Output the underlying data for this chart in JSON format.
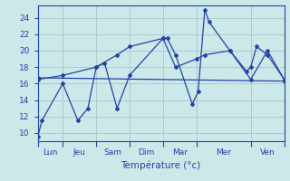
{
  "xlabel": "Température (°c)",
  "background_color": "#cce8e8",
  "grid_color": "#aacccc",
  "line_color": "#2244aa",
  "ylim": [
    9,
    25.5
  ],
  "yticks": [
    10,
    12,
    14,
    16,
    18,
    20,
    22,
    24
  ],
  "day_labels": [
    "Lun",
    "Jeu",
    "Sam",
    "Dim",
    "Mar",
    "Mer",
    "Ven"
  ],
  "day_tick_positions": [
    0,
    30,
    70,
    110,
    150,
    190,
    255,
    295
  ],
  "day_label_centers": [
    15,
    50,
    90,
    130,
    170,
    222,
    275
  ],
  "xlim": [
    0,
    295
  ],
  "series": [
    {
      "x": [
        0,
        5,
        30,
        48,
        60,
        70,
        80,
        95,
        110,
        150,
        155,
        165,
        185,
        192,
        200,
        205,
        230,
        250,
        255,
        262,
        275,
        295
      ],
      "y": [
        9.5,
        11.5,
        16.0,
        11.5,
        13.0,
        18.0,
        18.5,
        13.0,
        17.0,
        21.5,
        21.5,
        19.5,
        13.5,
        15.0,
        25.0,
        23.5,
        20.0,
        17.5,
        18.0,
        20.5,
        19.5,
        16.5
      ]
    },
    {
      "x": [
        0,
        295
      ],
      "y": [
        16.7,
        16.3
      ]
    },
    {
      "x": [
        0,
        30,
        70,
        95,
        110,
        150,
        165,
        190,
        200,
        230,
        255,
        275,
        295
      ],
      "y": [
        16.5,
        17.0,
        18.0,
        19.5,
        20.5,
        21.5,
        18.0,
        19.0,
        19.5,
        20.0,
        16.5,
        20.0,
        16.5
      ]
    }
  ]
}
